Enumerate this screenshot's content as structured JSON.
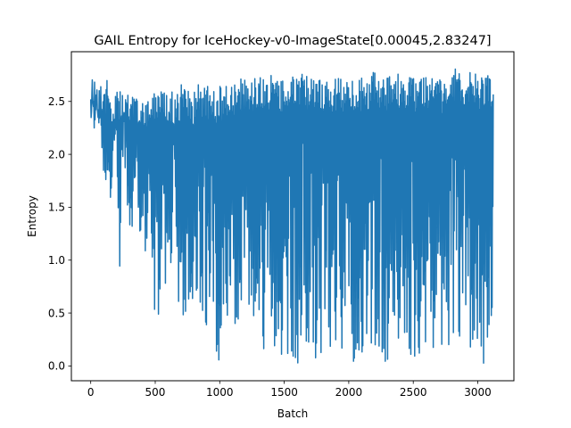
{
  "chart_data": {
    "type": "line",
    "title": "GAIL Entropy for IceHockey-v0-ImageState[0.00045,2.83247]",
    "xlabel": "Batch",
    "ylabel": "Entropy",
    "xlim": [
      -150,
      3280
    ],
    "ylim": [
      -0.14,
      2.97
    ],
    "xticks": [
      0,
      500,
      1000,
      1500,
      2000,
      2500,
      3000
    ],
    "yticks": [
      0.0,
      0.5,
      1.0,
      1.5,
      2.0,
      2.5
    ],
    "xtick_labels": [
      "0",
      "500",
      "1000",
      "1500",
      "2000",
      "2500",
      "3000"
    ],
    "ytick_labels": [
      "0.0",
      "0.5",
      "1.0",
      "1.5",
      "2.0",
      "2.5"
    ],
    "grid": false,
    "series": [
      {
        "color": "#1f77b4",
        "x_range": [
          0,
          3120
        ],
        "y_min": 0.00045,
        "y_max": 2.83247,
        "envelope": {
          "x": [
            0,
            25,
            50,
            75,
            100,
            125,
            150,
            175,
            200,
            225,
            250,
            275,
            300,
            325,
            350,
            375,
            400,
            450,
            500,
            550,
            600,
            650,
            700,
            750,
            800,
            850,
            900,
            950,
            1000,
            1050,
            1100,
            1150,
            1200,
            1250,
            1300,
            1350,
            1400,
            1450,
            1500,
            1550,
            1600,
            1650,
            1700,
            1750,
            1800,
            1850,
            1900,
            1950,
            2000,
            2050,
            2100,
            2150,
            2200,
            2250,
            2300,
            2350,
            2400,
            2450,
            2500,
            2550,
            2600,
            2650,
            2700,
            2750,
            2800,
            2850,
            2900,
            2950,
            3000,
            3050,
            3100,
            3120
          ],
          "low": [
            2.25,
            2.1,
            2.3,
            2.25,
            1.55,
            1.85,
            1.3,
            1.8,
            1.5,
            0.65,
            1.9,
            1.6,
            1.05,
            1.3,
            1.45,
            1.2,
            1.25,
            0.85,
            0.3,
            0.55,
            0.9,
            0.85,
            0.4,
            0.45,
            0.65,
            0.1,
            0.35,
            0.25,
            0.02,
            0.35,
            0.25,
            0.2,
            0.15,
            0.25,
            0.2,
            0.0,
            0.02,
            0.05,
            0.1,
            0.05,
            0.0,
            0.05,
            0.1,
            0.05,
            0.1,
            0.0,
            0.05,
            0.15,
            0.02,
            0.05,
            0.05,
            0.1,
            0.0,
            0.05,
            0.0,
            0.0,
            0.05,
            0.15,
            0.05,
            0.0,
            0.05,
            0.1,
            0.0,
            0.05,
            0.1,
            0.02,
            0.05,
            0.0,
            0.05,
            0.02,
            0.05,
            0.9
          ],
          "high": [
            2.75,
            2.78,
            2.7,
            2.72,
            2.7,
            2.7,
            2.68,
            2.6,
            2.62,
            2.6,
            2.55,
            2.6,
            2.6,
            2.58,
            2.62,
            2.55,
            2.6,
            2.6,
            2.65,
            2.6,
            2.65,
            2.55,
            2.68,
            2.6,
            2.6,
            2.7,
            2.65,
            2.6,
            2.65,
            2.65,
            2.72,
            2.7,
            2.75,
            2.72,
            2.78,
            2.72,
            2.75,
            2.75,
            2.7,
            2.72,
            2.75,
            2.78,
            2.72,
            2.7,
            2.75,
            2.72,
            2.75,
            2.72,
            2.7,
            2.75,
            2.72,
            2.75,
            2.8,
            2.72,
            2.75,
            2.72,
            2.78,
            2.75,
            2.72,
            2.75,
            2.78,
            2.75,
            2.72,
            2.75,
            2.83,
            2.8,
            2.75,
            2.78,
            2.75,
            2.78,
            2.75,
            2.77
          ]
        }
      }
    ]
  }
}
